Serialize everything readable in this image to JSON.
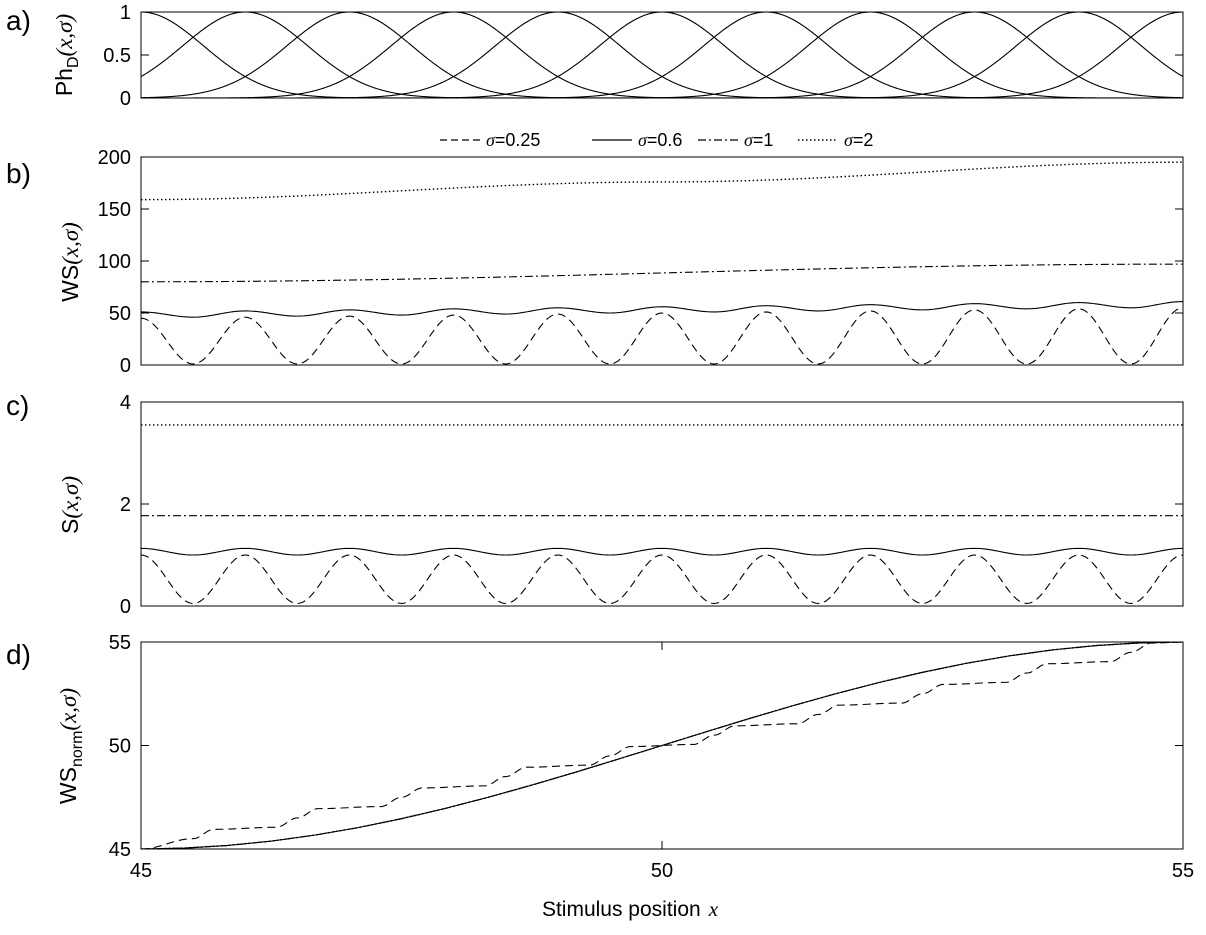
{
  "figure": {
    "xlabel": "Stimulus position",
    "xlabel_symbol": "x",
    "legend": [
      {
        "symbol": "σ",
        "text": "=0.25",
        "style": "dashed"
      },
      {
        "symbol": "σ",
        "text": "=0.6",
        "style": "solid"
      },
      {
        "symbol": "σ",
        "text": "=1",
        "style": "dashdot"
      },
      {
        "symbol": "σ",
        "text": "=2",
        "style": "dotted"
      }
    ]
  },
  "chart_data": [
    {
      "panel": "a)",
      "type": "line",
      "ylabel": {
        "main": "Ph",
        "sub": "D",
        "args": "(x,σ)"
      },
      "xlim": [
        45,
        55
      ],
      "ylim": [
        0,
        1
      ],
      "yticks": [
        "0",
        "0.5",
        "1"
      ],
      "series": [
        {
          "kind": "gaussian_tuning_curves",
          "centers": [
            45,
            46,
            47,
            48,
            49,
            50,
            51,
            52,
            53,
            54,
            55
          ],
          "width": 0.6,
          "peak": 1,
          "color": "#000000"
        }
      ]
    },
    {
      "panel": "b)",
      "type": "line",
      "ylabel": {
        "main": "WS",
        "args": "(x,σ)"
      },
      "xlim": [
        45,
        55
      ],
      "ylim": [
        0,
        200
      ],
      "yticks": [
        "0",
        "50",
        "100",
        "150",
        "200"
      ],
      "series": [
        {
          "name": "σ=0.25",
          "style": "dashed",
          "points": [
            [
              45,
              45
            ],
            [
              45.5,
              1
            ],
            [
              46,
              46
            ],
            [
              46.5,
              1
            ],
            [
              47,
              47
            ],
            [
              47.5,
              1
            ],
            [
              48,
              48
            ],
            [
              48.5,
              1
            ],
            [
              49,
              49
            ],
            [
              49.5,
              1
            ],
            [
              50,
              50
            ],
            [
              50.5,
              1
            ],
            [
              51,
              51
            ],
            [
              51.5,
              1
            ],
            [
              52,
              52
            ],
            [
              52.5,
              1
            ],
            [
              53,
              53
            ],
            [
              53.5,
              1
            ],
            [
              54,
              54
            ],
            [
              54.5,
              1
            ],
            [
              55,
              55
            ]
          ]
        },
        {
          "name": "σ=0.6",
          "style": "solid",
          "points": [
            [
              45,
              51
            ],
            [
              45.5,
              46
            ],
            [
              46,
              52
            ],
            [
              46.5,
              47
            ],
            [
              47,
              53
            ],
            [
              47.5,
              48
            ],
            [
              48,
              54
            ],
            [
              48.5,
              49
            ],
            [
              49,
              55
            ],
            [
              49.5,
              50
            ],
            [
              50,
              56
            ],
            [
              50.5,
              51
            ],
            [
              51,
              57
            ],
            [
              51.5,
              52
            ],
            [
              52,
              58
            ],
            [
              52.5,
              53
            ],
            [
              53,
              59
            ],
            [
              53.5,
              54
            ],
            [
              54,
              60
            ],
            [
              54.5,
              55
            ],
            [
              55,
              61
            ]
          ]
        },
        {
          "name": "σ=1",
          "style": "dashdot",
          "points": [
            [
              45,
              80
            ],
            [
              55,
              97
            ]
          ]
        },
        {
          "name": "σ=2",
          "style": "dotted",
          "points": [
            [
              45,
              159
            ],
            [
              50,
              176
            ],
            [
              55,
              195
            ]
          ]
        }
      ]
    },
    {
      "panel": "c)",
      "type": "line",
      "ylabel": {
        "main": "S",
        "args": "(x,σ)"
      },
      "xlim": [
        45,
        55
      ],
      "ylim": [
        0,
        4
      ],
      "yticks": [
        "0",
        "2",
        "4"
      ],
      "series": [
        {
          "name": "σ=0.25",
          "style": "dashed",
          "points": [
            [
              45,
              1.0
            ],
            [
              45.5,
              0.05
            ],
            [
              46,
              1.0
            ],
            [
              46.5,
              0.05
            ],
            [
              47,
              1.0
            ],
            [
              47.5,
              0.05
            ],
            [
              48,
              1.0
            ],
            [
              48.5,
              0.05
            ],
            [
              49,
              1.0
            ],
            [
              49.5,
              0.05
            ],
            [
              50,
              1.0
            ],
            [
              50.5,
              0.05
            ],
            [
              51,
              1.0
            ],
            [
              51.5,
              0.05
            ],
            [
              52,
              1.0
            ],
            [
              52.5,
              0.05
            ],
            [
              53,
              1.0
            ],
            [
              53.5,
              0.05
            ],
            [
              54,
              1.0
            ],
            [
              54.5,
              0.05
            ],
            [
              55,
              1.0
            ]
          ]
        },
        {
          "name": "σ=0.6",
          "style": "solid",
          "points": [
            [
              45,
              1.13
            ],
            [
              45.5,
              1.0
            ],
            [
              46,
              1.13
            ],
            [
              46.5,
              1.0
            ],
            [
              47,
              1.13
            ],
            [
              47.5,
              1.0
            ],
            [
              48,
              1.13
            ],
            [
              48.5,
              1.0
            ],
            [
              49,
              1.13
            ],
            [
              49.5,
              1.0
            ],
            [
              50,
              1.13
            ],
            [
              50.5,
              1.0
            ],
            [
              51,
              1.13
            ],
            [
              51.5,
              1.0
            ],
            [
              52,
              1.13
            ],
            [
              52.5,
              1.0
            ],
            [
              53,
              1.13
            ],
            [
              53.5,
              1.0
            ],
            [
              54,
              1.13
            ],
            [
              54.5,
              1.0
            ],
            [
              55,
              1.13
            ]
          ]
        },
        {
          "name": "σ=1",
          "style": "dashdot",
          "points": [
            [
              45,
              1.77
            ],
            [
              55,
              1.77
            ]
          ]
        },
        {
          "name": "σ=2",
          "style": "dotted",
          "points": [
            [
              45,
              3.55
            ],
            [
              55,
              3.55
            ]
          ]
        }
      ]
    },
    {
      "panel": "d)",
      "type": "line",
      "ylabel": {
        "main": "WS",
        "sub": "norm",
        "args": "(x,σ)"
      },
      "xlim": [
        45,
        55
      ],
      "ylim": [
        45,
        55
      ],
      "xticks": [
        "45",
        "50",
        "55"
      ],
      "yticks": [
        "45",
        "50",
        "55"
      ],
      "series": [
        {
          "name": "σ=0.25",
          "style": "dashed",
          "points": [
            [
              45,
              45
            ],
            [
              45.5,
              45.5
            ],
            [
              45.7,
              45.95
            ],
            [
              46.3,
              46.05
            ],
            [
              46.5,
              46.5
            ],
            [
              46.7,
              46.95
            ],
            [
              47.3,
              47.05
            ],
            [
              47.5,
              47.5
            ],
            [
              47.7,
              47.95
            ],
            [
              48.3,
              48.05
            ],
            [
              48.5,
              48.5
            ],
            [
              48.7,
              48.95
            ],
            [
              49.3,
              49.05
            ],
            [
              49.5,
              49.5
            ],
            [
              49.7,
              49.95
            ],
            [
              50.3,
              50.05
            ],
            [
              50.5,
              50.5
            ],
            [
              50.7,
              50.95
            ],
            [
              51.3,
              51.05
            ],
            [
              51.5,
              51.5
            ],
            [
              51.7,
              51.95
            ],
            [
              52.3,
              52.05
            ],
            [
              52.5,
              52.5
            ],
            [
              52.7,
              52.95
            ],
            [
              53.3,
              53.05
            ],
            [
              53.5,
              53.5
            ],
            [
              53.7,
              53.95
            ],
            [
              54.3,
              54.05
            ],
            [
              54.5,
              54.5
            ],
            [
              54.7,
              54.95
            ],
            [
              55,
              55
            ]
          ]
        },
        {
          "name": "σ=0.6",
          "style": "solid",
          "points": [
            [
              45,
              45
            ],
            [
              55,
              55
            ]
          ]
        },
        {
          "name": "σ=1",
          "style": "dashdot",
          "points": [
            [
              45,
              45
            ],
            [
              55,
              55
            ]
          ]
        },
        {
          "name": "σ=2",
          "style": "dotted",
          "points": [
            [
              45,
              45
            ],
            [
              55,
              55
            ]
          ]
        }
      ]
    }
  ]
}
